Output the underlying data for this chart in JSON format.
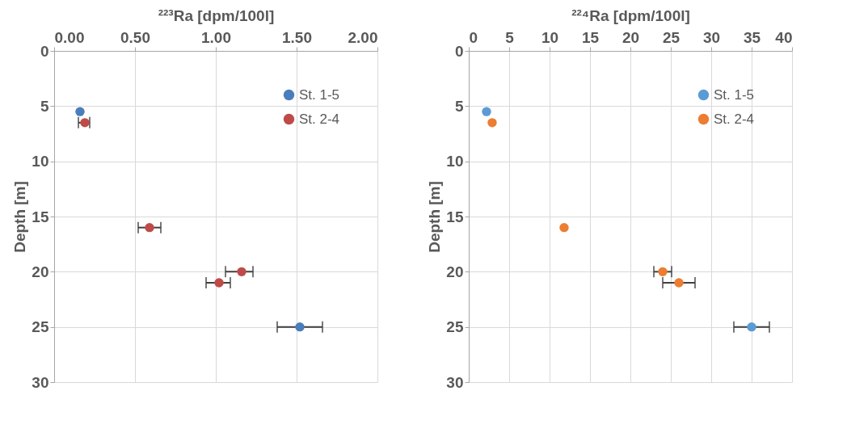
{
  "chart_data": [
    {
      "type": "scatter",
      "xlabel": "²²³Ra  [dpm/100l]",
      "ylabel": "Depth [m]",
      "xlim": [
        0,
        2
      ],
      "xticks": [
        {
          "value": 0,
          "label": "0.00"
        },
        {
          "value": 0.5,
          "label": "0.50"
        },
        {
          "value": 1,
          "label": "1.00"
        },
        {
          "value": 1.5,
          "label": "1.50"
        },
        {
          "value": 2,
          "label": "2.00"
        }
      ],
      "ylim": [
        30,
        0
      ],
      "yticks": [
        0,
        5,
        10,
        15,
        20,
        25,
        30
      ],
      "grid": true,
      "legend": "top right",
      "marker": "circle",
      "series": [
        {
          "name": "St. 1-5",
          "color": "#4a7ebb",
          "x": [
            0.16,
            1.52
          ],
          "values": [
            5.5,
            25
          ],
          "xerrors": [
            null,
            [
              1.38,
              1.66
            ]
          ]
        },
        {
          "name": "St. 2-4",
          "color": "#be4b48",
          "x": [
            0.19,
            0.59,
            1.16,
            1.02
          ],
          "values": [
            6.5,
            16,
            20,
            21
          ],
          "xerrors": [
            [
              0.15,
              0.22
            ],
            [
              0.52,
              0.66
            ],
            [
              1.06,
              1.23
            ],
            [
              0.94,
              1.09
            ]
          ]
        }
      ]
    },
    {
      "type": "scatter",
      "xlabel": "²²⁴Ra  [dpm/100l]",
      "ylabel": "Depth [m]",
      "xlim": [
        0,
        40
      ],
      "xticks": [
        0,
        5,
        10,
        15,
        20,
        25,
        30,
        35,
        40
      ],
      "ylim": [
        30,
        0
      ],
      "yticks": [
        0,
        5,
        10,
        15,
        20,
        25,
        30
      ],
      "grid": true,
      "legend": "top right",
      "marker": "circle",
      "series": [
        {
          "name": "St. 1-5",
          "color": "#5b9bd5",
          "x": [
            2.2,
            35
          ],
          "values": [
            5.5,
            25
          ],
          "xerrors": [
            null,
            [
              32.8,
              37.2
            ]
          ]
        },
        {
          "name": "St. 2-4",
          "color": "#ed7d31",
          "x": [
            2.9,
            11.8,
            24,
            26
          ],
          "values": [
            6.5,
            16,
            20,
            21
          ],
          "xerrors": [
            null,
            null,
            [
              22.9,
              25.1
            ],
            [
              24,
              28
            ]
          ]
        }
      ]
    }
  ]
}
